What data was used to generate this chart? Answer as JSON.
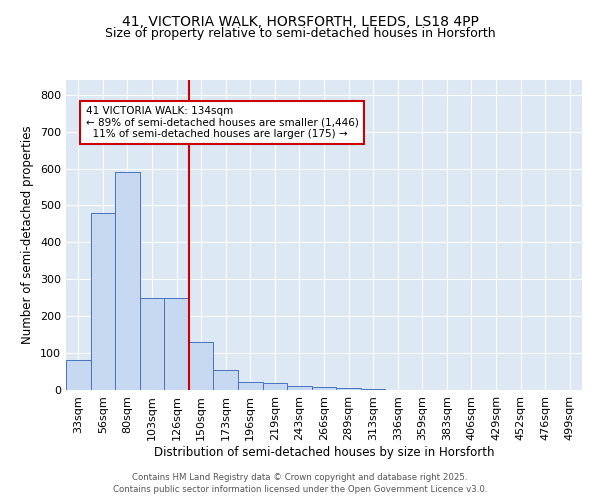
{
  "title_line1": "41, VICTORIA WALK, HORSFORTH, LEEDS, LS18 4PP",
  "title_line2": "Size of property relative to semi-detached houses in Horsforth",
  "xlabel": "Distribution of semi-detached houses by size in Horsforth",
  "ylabel": "Number of semi-detached properties",
  "categories": [
    "33sqm",
    "56sqm",
    "80sqm",
    "103sqm",
    "126sqm",
    "150sqm",
    "173sqm",
    "196sqm",
    "219sqm",
    "243sqm",
    "266sqm",
    "289sqm",
    "313sqm",
    "336sqm",
    "359sqm",
    "383sqm",
    "406sqm",
    "429sqm",
    "452sqm",
    "476sqm",
    "499sqm"
  ],
  "values": [
    80,
    480,
    590,
    248,
    248,
    130,
    55,
    22,
    18,
    12,
    8,
    5,
    2,
    0,
    0,
    0,
    0,
    0,
    0,
    0,
    0
  ],
  "bar_color": "#c6d9f0",
  "bar_edge_color": "#4472c4",
  "red_line_color": "#cc0000",
  "annotation_text": "41 VICTORIA WALK: 134sqm\n← 89% of semi-detached houses are smaller (1,446)\n  11% of semi-detached houses are larger (175) →",
  "annotation_box_color": "#ffffff",
  "annotation_box_edge_color": "#cc0000",
  "ylim": [
    0,
    840
  ],
  "yticks": [
    0,
    100,
    200,
    300,
    400,
    500,
    600,
    700,
    800
  ],
  "background_color": "#dde8f5",
  "grid_color": "#ffffff",
  "footer_line1": "Contains HM Land Registry data © Crown copyright and database right 2025.",
  "footer_line2": "Contains public sector information licensed under the Open Government Licence v3.0."
}
